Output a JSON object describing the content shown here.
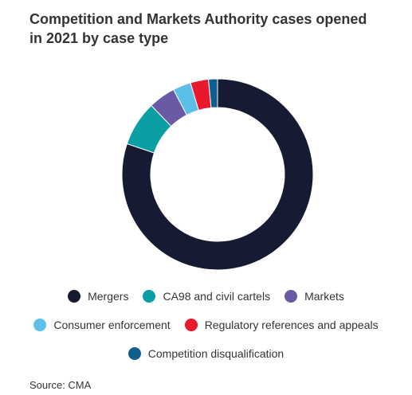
{
  "chart_data": {
    "type": "pie",
    "variant": "donut",
    "title": "Competition and Markets Authority cases opened in 2021 by case type",
    "categories": [
      "Mergers",
      "CA98 and civil cartels",
      "Markets",
      "Consumer enforcement",
      "Regulatory references and appeals",
      "Competition disqualification"
    ],
    "values": [
      79,
      7.5,
      4.5,
      3,
      3,
      1.5
    ],
    "colors": [
      "#161b33",
      "#0a9fa3",
      "#6a5aa5",
      "#5bbfe8",
      "#e8192c",
      "#0e5f8f"
    ],
    "legend_position": "bottom",
    "legend_rows": [
      [
        0,
        1,
        2
      ],
      [
        3,
        4
      ],
      [
        5
      ]
    ],
    "source": "Source: CMA"
  }
}
